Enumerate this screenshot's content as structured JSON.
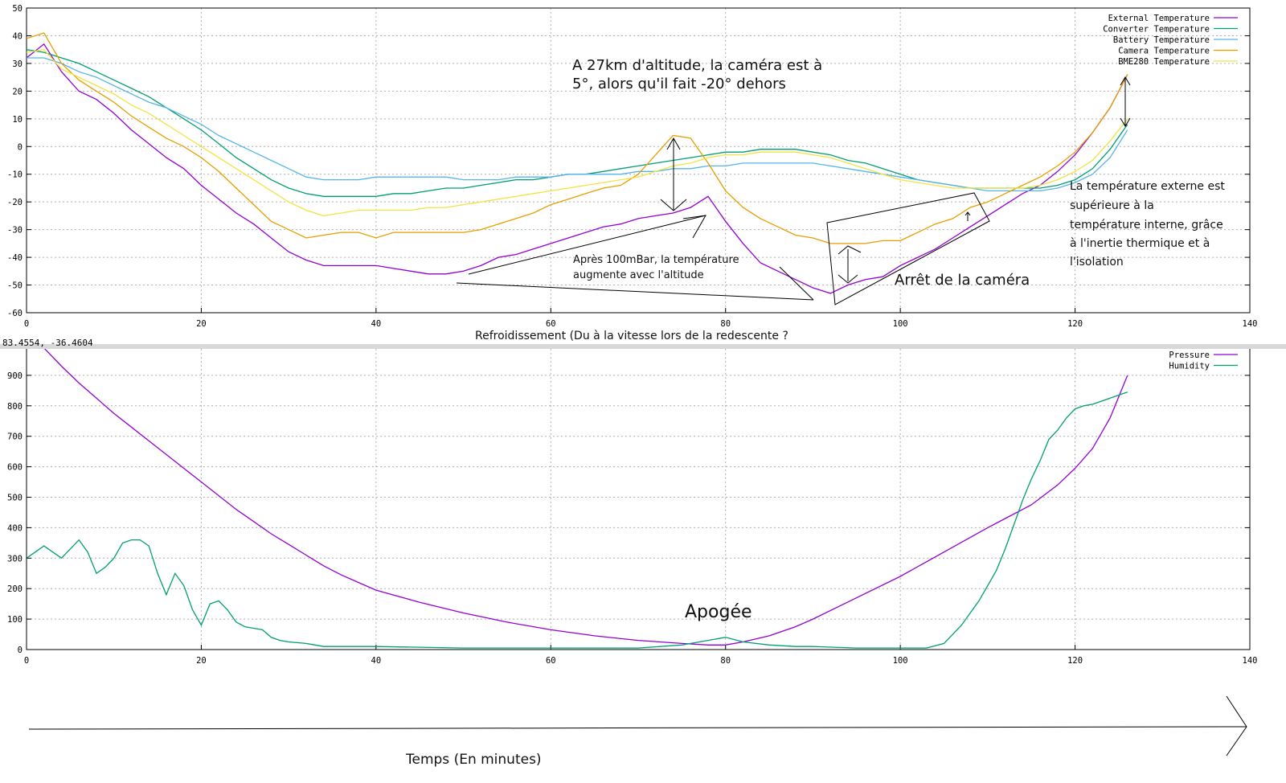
{
  "chart_data": [
    {
      "type": "line",
      "xlim": [
        0,
        140
      ],
      "ylim": [
        -60,
        50
      ],
      "x_ticks": [
        "0",
        "20",
        "40",
        "60",
        "80",
        "100",
        "120",
        "140"
      ],
      "y_ticks": [
        "-60",
        "-50",
        "-40",
        "-30",
        "-20",
        "-10",
        "0",
        "10",
        "20",
        "30",
        "40",
        "50"
      ],
      "grid": true,
      "legend_position": "top-right",
      "series": [
        {
          "name": "External Temperature",
          "color": "#9400d3",
          "x": [
            0,
            2,
            4,
            6,
            8,
            10,
            12,
            14,
            16,
            18,
            20,
            22,
            24,
            26,
            28,
            30,
            32,
            34,
            36,
            38,
            40,
            42,
            44,
            46,
            48,
            50,
            52,
            54,
            56,
            58,
            60,
            62,
            64,
            66,
            68,
            70,
            72,
            74,
            76,
            78,
            80,
            82,
            84,
            86,
            88,
            90,
            92,
            94,
            96,
            98,
            100,
            102,
            104,
            106,
            108,
            110,
            112,
            114,
            116,
            118,
            120,
            122,
            124,
            126
          ],
          "y": [
            32,
            37,
            27,
            20,
            17,
            12,
            6,
            1,
            -4,
            -8,
            -14,
            -19,
            -24,
            -28,
            -33,
            -38,
            -41,
            -43,
            -43,
            -43,
            -43,
            -44,
            -45,
            -46,
            -46,
            -45,
            -43,
            -40,
            -39,
            -37,
            -35,
            -33,
            -31,
            -29,
            -28,
            -26,
            -25,
            -24,
            -22,
            -18,
            -27,
            -35,
            -42,
            -45,
            -48,
            -51,
            -53,
            -50,
            -48,
            -47,
            -43,
            -40,
            -37,
            -33,
            -29,
            -25,
            -21,
            -17,
            -14,
            -9,
            -3,
            5,
            14,
            26
          ]
        },
        {
          "name": "Converter Temperature",
          "color": "#009e73",
          "x": [
            0,
            2,
            4,
            6,
            8,
            10,
            12,
            14,
            16,
            18,
            20,
            22,
            24,
            26,
            28,
            30,
            32,
            34,
            36,
            38,
            40,
            42,
            44,
            46,
            48,
            50,
            52,
            54,
            56,
            58,
            60,
            62,
            64,
            66,
            68,
            70,
            72,
            74,
            76,
            78,
            80,
            82,
            84,
            86,
            88,
            90,
            92,
            94,
            96,
            98,
            100,
            102,
            104,
            106,
            108,
            110,
            112,
            114,
            116,
            118,
            120,
            122,
            124,
            126
          ],
          "y": [
            35,
            34,
            32,
            30,
            27,
            24,
            21,
            18,
            14,
            10,
            6,
            1,
            -4,
            -8,
            -12,
            -15,
            -17,
            -18,
            -18,
            -18,
            -18,
            -17,
            -17,
            -16,
            -15,
            -15,
            -14,
            -13,
            -12,
            -12,
            -11,
            -10,
            -10,
            -9,
            -8,
            -7,
            -6,
            -5,
            -4,
            -3,
            -2,
            -2,
            -1,
            -1,
            -1,
            -2,
            -3,
            -5,
            -6,
            -8,
            -10,
            -12,
            -13,
            -14,
            -15,
            -15,
            -15,
            -15,
            -15,
            -14,
            -12,
            -8,
            -1,
            8
          ]
        },
        {
          "name": "Battery Temperature",
          "color": "#56b4e9",
          "x": [
            0,
            2,
            4,
            6,
            8,
            10,
            12,
            14,
            16,
            18,
            20,
            22,
            24,
            26,
            28,
            30,
            32,
            34,
            36,
            38,
            40,
            42,
            44,
            46,
            48,
            50,
            52,
            54,
            56,
            58,
            60,
            62,
            64,
            66,
            68,
            70,
            72,
            74,
            76,
            78,
            80,
            82,
            84,
            86,
            88,
            90,
            92,
            94,
            96,
            98,
            100,
            102,
            104,
            106,
            108,
            110,
            112,
            114,
            116,
            118,
            120,
            122,
            124,
            126
          ],
          "y": [
            32,
            32,
            30,
            27,
            25,
            22,
            19,
            16,
            14,
            11,
            8,
            4,
            1,
            -2,
            -5,
            -8,
            -11,
            -12,
            -12,
            -12,
            -11,
            -11,
            -11,
            -11,
            -11,
            -12,
            -12,
            -12,
            -11,
            -11,
            -11,
            -10,
            -10,
            -10,
            -10,
            -9,
            -9,
            -8,
            -8,
            -7,
            -7,
            -6,
            -6,
            -6,
            -6,
            -6,
            -7,
            -8,
            -9,
            -10,
            -11,
            -12,
            -13,
            -14,
            -15,
            -16,
            -16,
            -16,
            -16,
            -15,
            -13,
            -10,
            -4,
            6
          ]
        },
        {
          "name": "Camera Temperature",
          "color": "#e69f00",
          "x": [
            0,
            2,
            4,
            6,
            8,
            10,
            12,
            14,
            16,
            18,
            20,
            22,
            24,
            26,
            28,
            30,
            32,
            34,
            36,
            38,
            40,
            42,
            44,
            46,
            48,
            50,
            52,
            54,
            56,
            58,
            60,
            62,
            64,
            66,
            68,
            70,
            72,
            74,
            76,
            78,
            80,
            82,
            84,
            86,
            88,
            90,
            92,
            94,
            96,
            98,
            100,
            102,
            104,
            106,
            108,
            110,
            112,
            114,
            116,
            118,
            120,
            122,
            124,
            126
          ],
          "y": [
            39,
            41,
            30,
            24,
            20,
            16,
            11,
            7,
            3,
            0,
            -4,
            -9,
            -15,
            -21,
            -27,
            -30,
            -33,
            -32,
            -31,
            -31,
            -33,
            -31,
            -31,
            -31,
            -31,
            -31,
            -30,
            -28,
            -26,
            -24,
            -21,
            -19,
            -17,
            -15,
            -14,
            -10,
            -3,
            4,
            3,
            -6,
            -16,
            -22,
            -26,
            -29,
            -32,
            -33,
            -35,
            -35,
            -35,
            -34,
            -34,
            -31,
            -28,
            -26,
            -22,
            -20,
            -17,
            -14,
            -11,
            -7,
            -2,
            5,
            14,
            26
          ]
        },
        {
          "name": "BME280 Temperature",
          "color": "#f0e442",
          "x": [
            0,
            2,
            4,
            6,
            8,
            10,
            12,
            14,
            16,
            18,
            20,
            22,
            24,
            26,
            28,
            30,
            32,
            34,
            36,
            38,
            40,
            42,
            44,
            46,
            48,
            50,
            52,
            54,
            56,
            58,
            60,
            62,
            64,
            66,
            68,
            70,
            72,
            74,
            76,
            78,
            80,
            82,
            84,
            86,
            88,
            90,
            92,
            94,
            96,
            98,
            100,
            102,
            104,
            106,
            108,
            110,
            112,
            114,
            116,
            118,
            120,
            122,
            124,
            126
          ],
          "y": [
            34,
            35,
            28,
            25,
            22,
            19,
            15,
            12,
            8,
            4,
            0,
            -4,
            -8,
            -12,
            -16,
            -20,
            -23,
            -25,
            -24,
            -23,
            -23,
            -23,
            -23,
            -22,
            -22,
            -21,
            -20,
            -19,
            -18,
            -17,
            -16,
            -15,
            -14,
            -13,
            -12,
            -11,
            -9,
            -7,
            -6,
            -4,
            -3,
            -3,
            -2,
            -2,
            -2,
            -3,
            -4,
            -6,
            -8,
            -10,
            -12,
            -13,
            -14,
            -15,
            -15,
            -15,
            -15,
            -15,
            -14,
            -12,
            -9,
            -5,
            2,
            10
          ]
        }
      ]
    },
    {
      "type": "line",
      "xlim": [
        0,
        140
      ],
      "ylim": [
        0,
        1000
      ],
      "x_ticks": [
        "0",
        "20",
        "40",
        "60",
        "80",
        "100",
        "120",
        "140"
      ],
      "y_ticks": [
        "0",
        "100",
        "200",
        "300",
        "400",
        "500",
        "600",
        "700",
        "800",
        "900"
      ],
      "grid": true,
      "legend_position": "top-right",
      "series": [
        {
          "name": "Pressure",
          "color": "#9400d3",
          "x": [
            0,
            2,
            4,
            6,
            8,
            10,
            12,
            14,
            16,
            18,
            20,
            22,
            24,
            26,
            28,
            30,
            32,
            34,
            36,
            38,
            40,
            45,
            50,
            55,
            60,
            65,
            70,
            75,
            78,
            80,
            82,
            85,
            88,
            90,
            95,
            100,
            105,
            110,
            112,
            115,
            118,
            120,
            122,
            124,
            126
          ],
          "y": [
            1000,
            990,
            930,
            875,
            825,
            775,
            730,
            685,
            640,
            595,
            550,
            505,
            460,
            420,
            380,
            345,
            310,
            275,
            245,
            220,
            195,
            155,
            120,
            90,
            65,
            45,
            30,
            20,
            15,
            15,
            25,
            45,
            75,
            100,
            170,
            240,
            320,
            400,
            430,
            475,
            540,
            595,
            660,
            760,
            900
          ]
        },
        {
          "name": "Humidity",
          "color": "#009e73",
          "x": [
            0,
            1,
            2,
            3,
            4,
            5,
            6,
            7,
            8,
            9,
            10,
            11,
            12,
            13,
            14,
            15,
            16,
            17,
            18,
            19,
            20,
            21,
            22,
            23,
            24,
            25,
            26,
            27,
            28,
            29,
            30,
            32,
            34,
            36,
            40,
            50,
            60,
            70,
            75,
            78,
            80,
            82,
            85,
            88,
            90,
            95,
            100,
            103,
            105,
            107,
            109,
            110,
            111,
            112,
            113,
            114,
            115,
            116,
            117,
            118,
            119,
            120,
            121,
            122,
            123,
            124,
            125,
            126
          ],
          "y": [
            300,
            320,
            340,
            320,
            300,
            330,
            360,
            320,
            250,
            270,
            300,
            350,
            360,
            360,
            340,
            250,
            180,
            250,
            210,
            130,
            80,
            150,
            160,
            130,
            90,
            75,
            70,
            65,
            40,
            30,
            25,
            20,
            10,
            10,
            10,
            5,
            5,
            5,
            15,
            30,
            40,
            25,
            15,
            10,
            10,
            5,
            5,
            5,
            20,
            80,
            160,
            210,
            260,
            330,
            410,
            490,
            560,
            620,
            690,
            720,
            760,
            790,
            800,
            805,
            815,
            825,
            835,
            845
          ]
        }
      ]
    }
  ],
  "annotations": {
    "altitude_note_line1": "A 27km d'altitude, la caméra est à",
    "altitude_note_line2": "5°, alors qu'il fait -20° dehors",
    "inversion_note_line1": "Après 100mBar, la température",
    "inversion_note_line2": "augmente avec l'altitude",
    "camera_stop": "Arrêt de la caméra",
    "external_note_line1": "La température externe est",
    "external_note_line2": "supérieure à la",
    "external_note_line3": "température interne, grâce",
    "external_note_line4": "à l'inertie thermique et à",
    "external_note_line5": "l'isolation",
    "cooling_note": "Refroidissement  (Du à la vitesse lors de la redescente ?",
    "coords_readout": "83.4554, -36.4604",
    "apogee": "Apogée",
    "time_axis_label": "Temps (En minutes)"
  }
}
